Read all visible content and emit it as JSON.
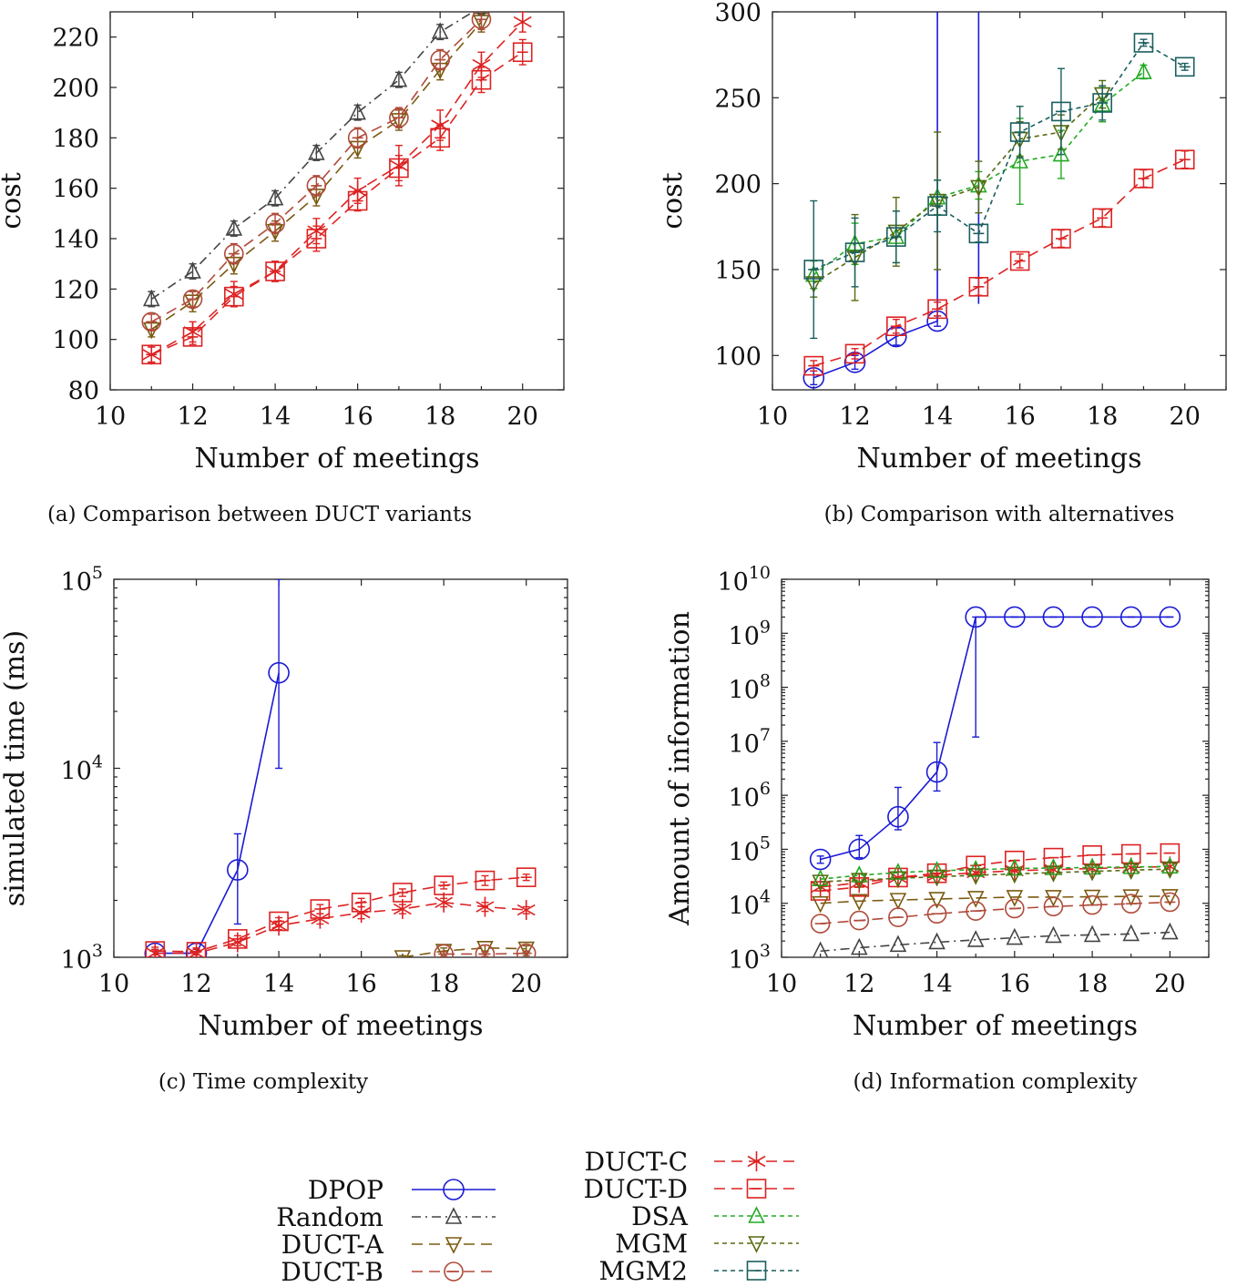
{
  "colors": {
    "DPOP": "#1a1ad6",
    "Random": "#444444",
    "DUCT-A": "#7a5a10",
    "DUCT-B": "#b04a3a",
    "DUCT-C": "#dd2222",
    "DUCT-D": "#dd2222",
    "DSA": "#22aa22",
    "MGM": "#556b10",
    "MGM2": "#1a5e5e"
  },
  "legend": {
    "left": [
      {
        "name": "DPOP",
        "marker": "circle",
        "dash": "solid"
      },
      {
        "name": "Random",
        "marker": "triangle",
        "dash": "dashdot"
      },
      {
        "name": "DUCT-A",
        "marker": "invtriangle",
        "dash": "dashed"
      },
      {
        "name": "DUCT-B",
        "marker": "circleminus",
        "dash": "dashed"
      }
    ],
    "right": [
      {
        "name": "DUCT-C",
        "marker": "star",
        "dash": "dashed"
      },
      {
        "name": "DUCT-D",
        "marker": "squareminus",
        "dash": "dashed"
      },
      {
        "name": "DSA",
        "marker": "triangle",
        "dash": "dotted"
      },
      {
        "name": "MGM",
        "marker": "invtriangle",
        "dash": "dotted"
      },
      {
        "name": "MGM2",
        "marker": "squareminus",
        "dash": "dotted"
      }
    ]
  },
  "chart_data": [
    {
      "id": "a",
      "type": "line",
      "caption": "(a) Comparison between DUCT variants",
      "xlabel": "Number of meetings",
      "ylabel": "cost",
      "xlim": [
        10,
        21
      ],
      "ylim": [
        80,
        230
      ],
      "xticks": [
        10,
        12,
        14,
        16,
        18,
        20
      ],
      "yticks": [
        80,
        100,
        120,
        140,
        160,
        180,
        200,
        220
      ],
      "log": false,
      "series": [
        {
          "name": "Random",
          "x": [
            11,
            12,
            13,
            14,
            15,
            16,
            17,
            18,
            19
          ],
          "y": [
            116,
            127,
            144,
            156,
            174,
            190,
            203,
            222,
            232
          ],
          "err": [
            3,
            3,
            3,
            3,
            3,
            3,
            3,
            3,
            3
          ]
        },
        {
          "name": "DUCT-A",
          "x": [
            11,
            12,
            13,
            14,
            15,
            16,
            17,
            18,
            19
          ],
          "y": [
            104,
            115,
            130,
            143,
            157,
            176,
            187,
            207,
            226
          ],
          "err": [
            3,
            4,
            4,
            4,
            4,
            4,
            4,
            4,
            4
          ]
        },
        {
          "name": "DUCT-B",
          "x": [
            11,
            12,
            13,
            14,
            15,
            16,
            17,
            18,
            19
          ],
          "y": [
            107,
            116,
            134,
            146,
            161,
            180,
            188,
            211,
            227
          ],
          "err": [
            3,
            3,
            4,
            4,
            4,
            4,
            4,
            4,
            4
          ]
        },
        {
          "name": "DUCT-C",
          "x": [
            11,
            12,
            13,
            14,
            15,
            16,
            17,
            18,
            19,
            20
          ],
          "y": [
            94,
            103,
            118,
            127,
            143,
            159,
            169,
            185,
            209,
            226
          ],
          "err": [
            3,
            4,
            5,
            4,
            5,
            5,
            8,
            6,
            5,
            4
          ]
        },
        {
          "name": "DUCT-D",
          "x": [
            11,
            12,
            13,
            14,
            15,
            16,
            17,
            18,
            19,
            20
          ],
          "y": [
            94,
            101,
            117,
            127,
            140,
            155,
            168,
            180,
            203,
            214
          ],
          "err": [
            3,
            3,
            4,
            4,
            5,
            4,
            5,
            5,
            5,
            5
          ]
        }
      ]
    },
    {
      "id": "b",
      "type": "line",
      "caption": "(b) Comparison with alternatives",
      "xlabel": "Number of meetings",
      "ylabel": "cost",
      "xlim": [
        10,
        21
      ],
      "ylim": [
        80,
        300
      ],
      "xticks": [
        10,
        12,
        14,
        16,
        18,
        20
      ],
      "yticks": [
        100,
        150,
        200,
        250,
        300
      ],
      "log": false,
      "series": [
        {
          "name": "DPOP",
          "x": [
            11,
            12,
            13,
            14
          ],
          "y": [
            87,
            96,
            111,
            120
          ],
          "err": [
            4,
            4,
            5,
            3
          ],
          "extra_bars": [
            [
              14,
              120,
              300
            ],
            [
              15,
              130,
              300
            ]
          ]
        },
        {
          "name": "DUCT-D",
          "x": [
            11,
            12,
            13,
            14,
            15,
            16,
            17,
            18,
            19,
            20
          ],
          "y": [
            94,
            101,
            117,
            127,
            140,
            155,
            168,
            180,
            203,
            214
          ],
          "err": [
            3,
            3,
            4,
            4,
            5,
            4,
            5,
            5,
            5,
            5
          ]
        },
        {
          "name": "DSA",
          "x": [
            11,
            12,
            13,
            14,
            15,
            16,
            17,
            18,
            19
          ],
          "y": [
            147,
            165,
            169,
            192,
            199,
            213,
            217,
            246,
            265
          ],
          "err": [
            8,
            12,
            15,
            10,
            8,
            25,
            14,
            10,
            4
          ]
        },
        {
          "name": "MGM",
          "x": [
            11,
            12,
            13,
            14,
            15,
            16,
            17,
            18
          ],
          "y": [
            142,
            157,
            172,
            190,
            198,
            226,
            230,
            252
          ],
          "err": [
            8,
            25,
            20,
            40,
            15,
            10,
            10,
            8
          ]
        },
        {
          "name": "MGM2",
          "x": [
            11,
            12,
            13,
            14,
            15,
            16,
            17,
            18,
            19,
            20
          ],
          "y": [
            150,
            160,
            169,
            187,
            171,
            230,
            242,
            247,
            282,
            268
          ],
          "err": [
            40,
            20,
            15,
            15,
            5,
            15,
            25,
            10,
            2,
            2
          ]
        }
      ]
    },
    {
      "id": "c",
      "type": "line",
      "caption": "(c) Time complexity",
      "xlabel": "Number of meetings",
      "ylabel": "simulated time (ms)",
      "xlim": [
        10,
        21
      ],
      "ylim": [
        1000,
        100000
      ],
      "log": true,
      "xticks": [
        10,
        12,
        14,
        16,
        18,
        20
      ],
      "yticks": [
        1000,
        10000,
        100000
      ],
      "yticklabels": [
        {
          "base": "10",
          "exp": "3"
        },
        {
          "base": "10",
          "exp": "4"
        },
        {
          "base": "10",
          "exp": "5"
        }
      ],
      "series": [
        {
          "name": "DPOP",
          "x": [
            11,
            12,
            13,
            14
          ],
          "y": [
            1050,
            1050,
            2900,
            32000
          ],
          "lo": [
            1000,
            1000,
            1500,
            10000
          ],
          "hi": [
            1100,
            1100,
            4500,
            100000
          ],
          "clip_to": [
            14.05,
            100000
          ]
        },
        {
          "name": "DUCT-C",
          "x": [
            11,
            12,
            13,
            14,
            15,
            16,
            17,
            18,
            19,
            20
          ],
          "y": [
            1050,
            1050,
            1200,
            1470,
            1600,
            1720,
            1800,
            1950,
            1850,
            1780
          ],
          "lo": [
            1000,
            1000,
            1150,
            1400,
            1500,
            1600,
            1700,
            1850,
            1750,
            1700
          ],
          "hi": [
            1100,
            1100,
            1250,
            1550,
            1700,
            1850,
            1900,
            2050,
            1950,
            1850
          ]
        },
        {
          "name": "DUCT-D",
          "x": [
            11,
            12,
            13,
            14,
            15,
            16,
            17,
            18,
            19,
            20
          ],
          "y": [
            1080,
            1070,
            1250,
            1550,
            1800,
            1950,
            2200,
            2400,
            2550,
            2650
          ],
          "lo": [
            1030,
            1030,
            1200,
            1480,
            1700,
            1850,
            2100,
            2300,
            2400,
            2550
          ],
          "hi": [
            1130,
            1120,
            1300,
            1620,
            1900,
            2050,
            2300,
            2500,
            2700,
            2750
          ]
        },
        {
          "name": "DUCT-A",
          "x": [
            17,
            18,
            19,
            20
          ],
          "y": [
            1000,
            1080,
            1120,
            1110
          ],
          "lo": [
            980,
            1040,
            1080,
            1070
          ],
          "hi": [
            1020,
            1120,
            1160,
            1150
          ]
        },
        {
          "name": "DUCT-B",
          "x": [
            18,
            19,
            20
          ],
          "y": [
            1040,
            1040,
            1050
          ],
          "lo": [
            1010,
            1010,
            1020
          ],
          "hi": [
            1070,
            1070,
            1080
          ]
        }
      ]
    },
    {
      "id": "d",
      "type": "line",
      "caption": "(d) Information complexity",
      "xlabel": "Number of meetings",
      "ylabel": "Amount of information",
      "xlim": [
        10,
        21
      ],
      "ylim": [
        1000,
        10000000000
      ],
      "log": true,
      "xticks": [
        10,
        12,
        14,
        16,
        18,
        20
      ],
      "yticks": [
        1000,
        10000,
        100000,
        1000000,
        10000000,
        100000000,
        1000000000,
        10000000000
      ],
      "yticklabels": [
        {
          "base": "10",
          "exp": "3"
        },
        {
          "base": "10",
          "exp": "4"
        },
        {
          "base": "10",
          "exp": "5"
        },
        {
          "base": "10",
          "exp": "6"
        },
        {
          "base": "10",
          "exp": "7"
        },
        {
          "base": "10",
          "exp": "8"
        },
        {
          "base": "10",
          "exp": "9"
        },
        {
          "base": "10",
          "exp": "10"
        }
      ],
      "series": [
        {
          "name": "DPOP",
          "x": [
            11,
            12,
            13,
            14,
            15,
            16,
            17,
            18,
            19,
            20
          ],
          "y": [
            65000,
            100000,
            400000,
            2700000,
            2000000000,
            2000000000,
            2000000000,
            2000000000,
            2000000000,
            2000000000
          ],
          "lo": [
            55000,
            70000,
            230000,
            1200000,
            12000000,
            2000000000,
            2000000000,
            2000000000,
            2000000000,
            2000000000
          ],
          "hi": [
            75000,
            180000,
            1400000,
            9500000,
            2000000000,
            2000000000,
            2000000000,
            2000000000,
            2000000000,
            2000000000
          ]
        },
        {
          "name": "DUCT-D",
          "x": [
            11,
            12,
            13,
            14,
            15,
            16,
            17,
            18,
            19,
            20
          ],
          "y": [
            17000,
            20000,
            30000,
            36000,
            50000,
            62000,
            70000,
            78000,
            82000,
            85000
          ]
        },
        {
          "name": "DUCT-C",
          "x": [
            11,
            12,
            13,
            14,
            15,
            16,
            17,
            18,
            19,
            20
          ],
          "y": [
            20000,
            24000,
            30000,
            33000,
            37000,
            40000,
            42000,
            44000,
            46000,
            48000
          ]
        },
        {
          "name": "DSA",
          "x": [
            11,
            12,
            13,
            14,
            15,
            16,
            17,
            18,
            19,
            20
          ],
          "y": [
            28000,
            33000,
            37000,
            40000,
            42000,
            44000,
            45000,
            46000,
            47000,
            48000
          ]
        },
        {
          "name": "MGM",
          "x": [
            11,
            12,
            13,
            14,
            15,
            16,
            17,
            18,
            19,
            20
          ],
          "y": [
            25000,
            27000,
            29000,
            31000,
            33000,
            35000,
            37000,
            39000,
            41000,
            43000
          ]
        },
        {
          "name": "DUCT-A",
          "x": [
            11,
            12,
            13,
            14,
            15,
            16,
            17,
            18,
            19,
            20
          ],
          "y": [
            10000,
            11000,
            11500,
            12000,
            12500,
            13000,
            13000,
            13200,
            13400,
            13500
          ]
        },
        {
          "name": "DUCT-B",
          "x": [
            11,
            12,
            13,
            14,
            15,
            16,
            17,
            18,
            19,
            20
          ],
          "y": [
            4200,
            4800,
            5500,
            6400,
            7200,
            8000,
            8700,
            9300,
            9800,
            10500
          ]
        },
        {
          "name": "Random",
          "x": [
            11,
            12,
            13,
            14,
            15,
            16,
            17,
            18,
            19,
            20
          ],
          "y": [
            1300,
            1500,
            1700,
            1900,
            2100,
            2300,
            2500,
            2600,
            2700,
            2900
          ]
        }
      ]
    }
  ]
}
